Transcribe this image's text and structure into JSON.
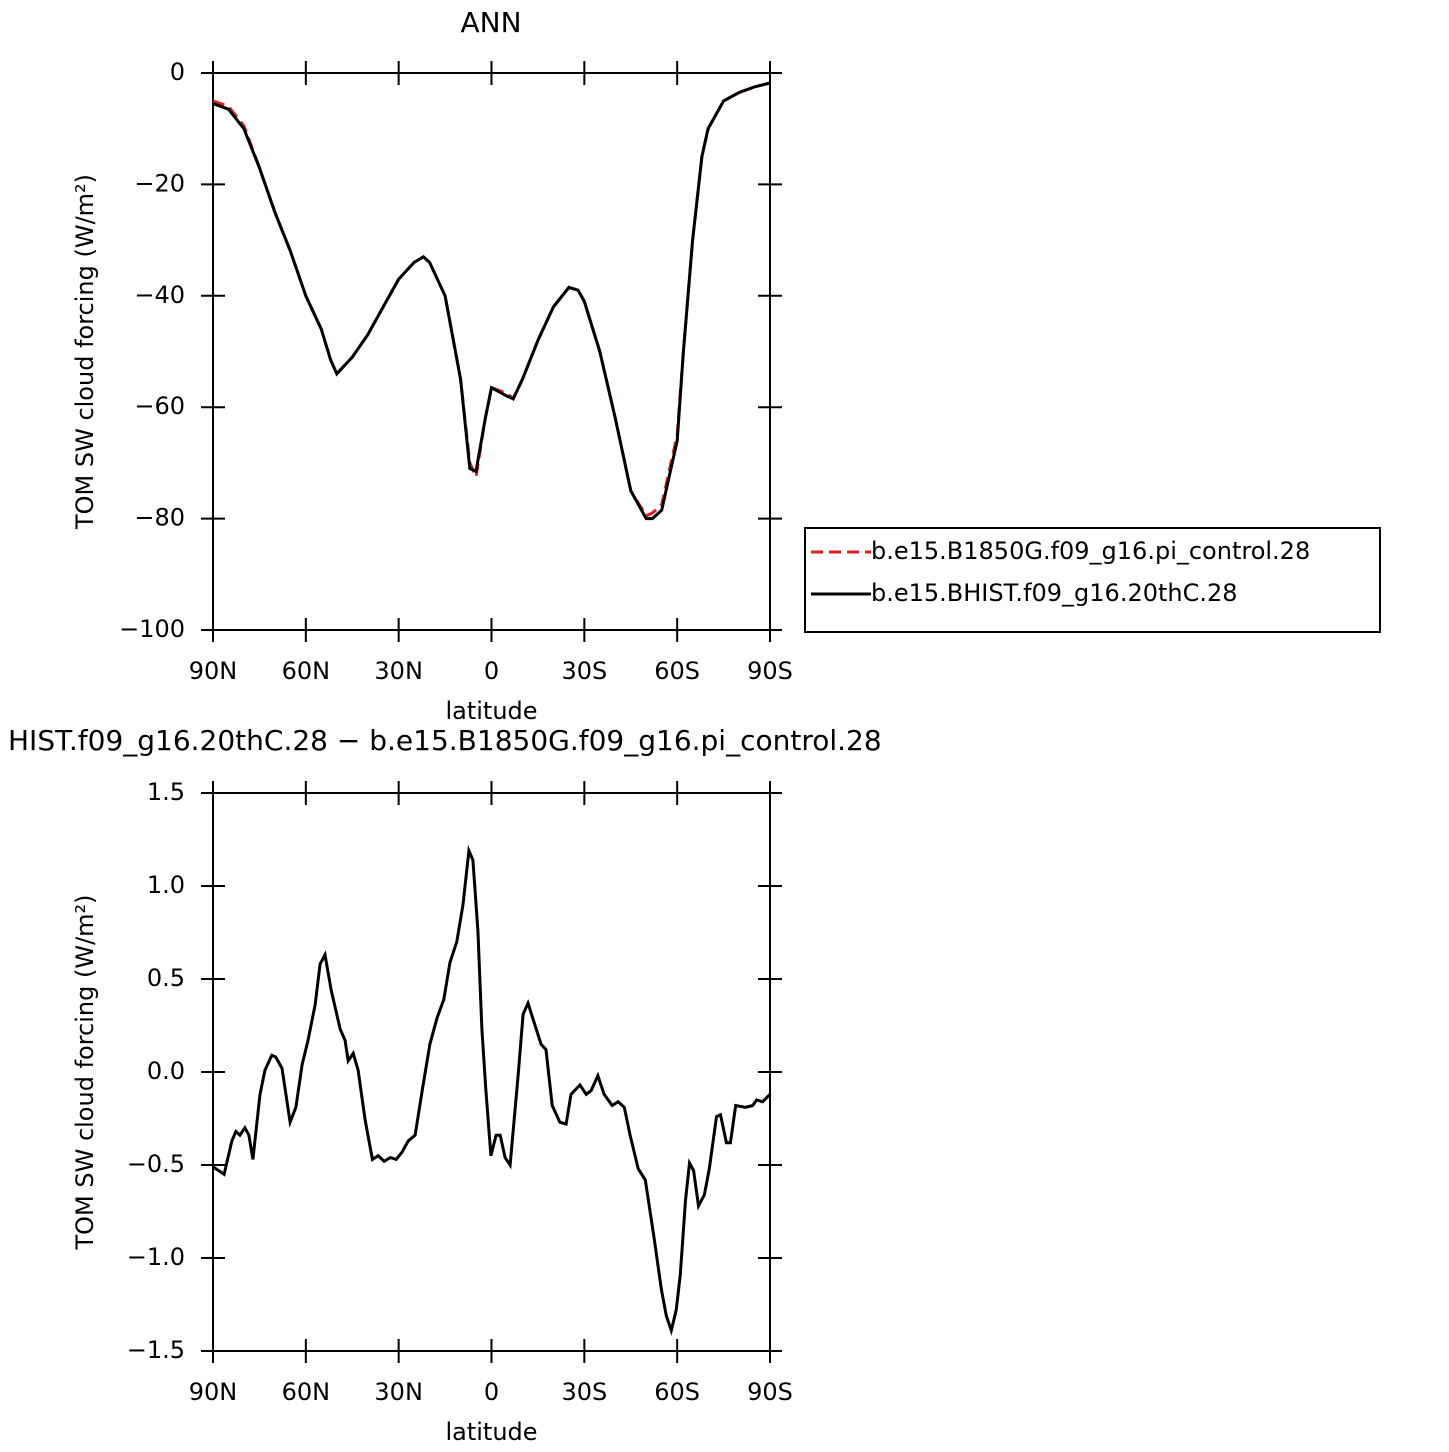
{
  "chart_data": [
    {
      "type": "line",
      "title": "ANN",
      "xlabel": "latitude",
      "ylabel": "TOM SW cloud forcing (W/m²)",
      "x": [
        90,
        85,
        80,
        75,
        70,
        65,
        60,
        55,
        52,
        50,
        45,
        40,
        35,
        30,
        25,
        22,
        20,
        15,
        10,
        7,
        5,
        2,
        0,
        -5,
        -7,
        -10,
        -15,
        -20,
        -25,
        -28,
        -30,
        -35,
        -40,
        -45,
        -50,
        -52,
        -55,
        -60,
        -62,
        -65,
        -68,
        -70,
        -75,
        -80,
        -85,
        -90
      ],
      "series": [
        {
          "name": "b.e15.B1850G.f09_g16.pi_control.28",
          "color": "#e41a1c",
          "line_style": "dashed",
          "values": [
            -5,
            -6,
            -9.5,
            -17,
            -25,
            -32,
            -40,
            -46,
            -51.5,
            -54,
            -51,
            -47,
            -42,
            -37,
            -34,
            -33,
            -34,
            -40,
            -55,
            -70,
            -72.5,
            -62,
            -56.5,
            -57.5,
            -58.5,
            -55,
            -48,
            -42,
            -38.5,
            -39,
            -41,
            -50,
            -62,
            -75,
            -79.5,
            -79,
            -77.5,
            -65,
            -50,
            -30,
            -15,
            -10,
            -5,
            -3.5,
            -2.5,
            -1.8
          ]
        },
        {
          "name": "b.e15.BHIST.f09_g16.20thC.28",
          "color": "#000000",
          "line_style": "solid",
          "values": [
            -5.5,
            -6.5,
            -10,
            -17,
            -25,
            -32,
            -40,
            -46,
            -51.5,
            -54,
            -51,
            -47,
            -42,
            -37,
            -34,
            -33,
            -34,
            -40,
            -55,
            -71,
            -71.5,
            -62,
            -56.5,
            -58,
            -58.5,
            -55,
            -48,
            -42,
            -38.5,
            -39,
            -41,
            -50,
            -62,
            -75,
            -80,
            -80,
            -78.5,
            -66,
            -50,
            -30,
            -15,
            -10,
            -5,
            -3.5,
            -2.5,
            -1.8
          ]
        }
      ],
      "xlim": [
        90,
        -90
      ],
      "xticks": [
        {
          "value": 90,
          "label": "90N"
        },
        {
          "value": 60,
          "label": "60N"
        },
        {
          "value": 30,
          "label": "30N"
        },
        0,
        {
          "value": -30,
          "label": "30S"
        },
        {
          "value": -60,
          "label": "60S"
        },
        {
          "value": -90,
          "label": "90S"
        }
      ],
      "ylim": [
        -100,
        0
      ],
      "yticks": [
        0,
        {
          "value": -20,
          "label": "−20"
        },
        {
          "value": -40,
          "label": "−40"
        },
        {
          "value": -60,
          "label": "−60"
        },
        {
          "value": -80,
          "label": "−80"
        },
        {
          "value": -100,
          "label": "−100"
        }
      ],
      "legend": "right"
    },
    {
      "type": "line",
      "title": "HIST.f09_g16.20thC.28 − b.e15.B1850G.f09_g16.pi_control.28",
      "xlabel": "latitude",
      "ylabel": "TOM SW cloud forcing (W/m²)",
      "x": [
        90,
        86.4,
        83.9,
        82.6,
        81.3,
        79.7,
        78.4,
        77.1,
        74.8,
        73.2,
        71.0,
        69.7,
        67.7,
        65.1,
        63.2,
        61.2,
        59.3,
        57.0,
        55.4,
        53.8,
        51.8,
        48.9,
        47.3,
        46.3,
        44.7,
        43.1,
        40.8,
        38.5,
        36.6,
        34.7,
        32.7,
        30.8,
        28.9,
        26.9,
        24.7,
        22.4,
        19.9,
        17.6,
        15.4,
        13.4,
        11.2,
        9.2,
        7.3,
        6.0,
        4.4,
        3.1,
        1.8,
        0.2,
        -1.5,
        -2.8,
        -4.4,
        -6.0,
        -8.6,
        -10.2,
        -11.8,
        -14.1,
        -16.0,
        -17.6,
        -19.6,
        -22.1,
        -24.1,
        -25.7,
        -28.6,
        -30.6,
        -32.2,
        -34.4,
        -36.4,
        -39.0,
        -40.9,
        -42.9,
        -44.8,
        -47.4,
        -49.7,
        -52.6,
        -54.9,
        -56.5,
        -58.1,
        -59.7,
        -61.0,
        -62.7,
        -64.0,
        -65.3,
        -66.9,
        -68.8,
        -70.4,
        -72.7,
        -74.0,
        -75.9,
        -77.2,
        -78.9,
        -82.1,
        -84.4,
        -85.7,
        -87.6,
        -90
      ],
      "series": [
        {
          "color": "#000000",
          "line_style": "solid",
          "values": [
            -0.51,
            -0.55,
            -0.37,
            -0.32,
            -0.34,
            -0.3,
            -0.34,
            -0.47,
            -0.12,
            0.01,
            0.09,
            0.08,
            0.02,
            -0.27,
            -0.19,
            0.04,
            0.17,
            0.36,
            0.58,
            0.63,
            0.44,
            0.23,
            0.17,
            0.06,
            0.1,
            0.01,
            -0.26,
            -0.47,
            -0.45,
            -0.48,
            -0.46,
            -0.47,
            -0.43,
            -0.37,
            -0.34,
            -0.1,
            0.15,
            0.29,
            0.39,
            0.59,
            0.7,
            0.9,
            1.19,
            1.14,
            0.76,
            0.23,
            -0.1,
            -0.45,
            -0.34,
            -0.34,
            -0.46,
            -0.5,
            -0.02,
            0.31,
            0.37,
            0.25,
            0.15,
            0.12,
            -0.18,
            -0.27,
            -0.28,
            -0.12,
            -0.07,
            -0.12,
            -0.1,
            -0.02,
            -0.12,
            -0.18,
            -0.16,
            -0.19,
            -0.34,
            -0.52,
            -0.58,
            -0.9,
            -1.17,
            -1.31,
            -1.39,
            -1.28,
            -1.09,
            -0.69,
            -0.49,
            -0.53,
            -0.72,
            -0.66,
            -0.52,
            -0.24,
            -0.23,
            -0.38,
            -0.38,
            -0.18,
            -0.19,
            -0.18,
            -0.15,
            -0.16,
            -0.12
          ]
        }
      ],
      "xlim": [
        90,
        -90
      ],
      "xticks": [
        {
          "value": 90,
          "label": "90N"
        },
        {
          "value": 60,
          "label": "60N"
        },
        {
          "value": 30,
          "label": "30N"
        },
        0,
        {
          "value": -30,
          "label": "30S"
        },
        {
          "value": -60,
          "label": "60S"
        },
        {
          "value": -90,
          "label": "90S"
        }
      ],
      "ylim": [
        -1.5,
        1.5
      ],
      "yticks": [
        1.5,
        {
          "value": 1.0,
          "label": "1.0"
        },
        0.5,
        {
          "value": 0.0,
          "label": "0.0"
        },
        {
          "value": -0.5,
          "label": "−0.5"
        },
        {
          "value": -1.0,
          "label": "−1.0"
        },
        {
          "value": -1.5,
          "label": "−1.5"
        }
      ]
    }
  ]
}
